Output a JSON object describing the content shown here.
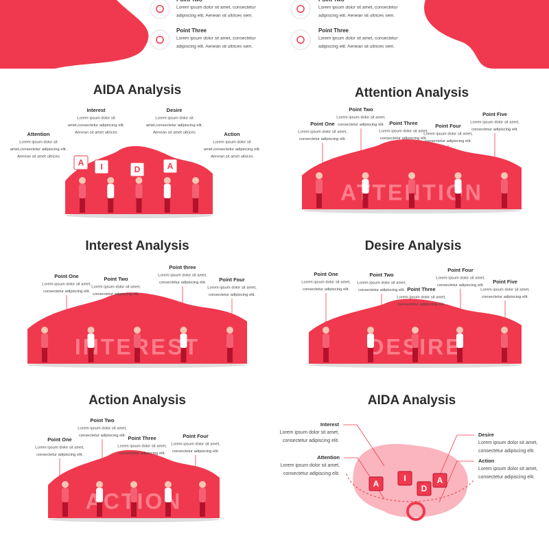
{
  "top_slides": [
    {
      "points": [
        {
          "label": "Point Two",
          "text": [
            "Lorem ipsum dolor sit amet, consectetur",
            "adipiscing elit. Aenean sit ultrices sem."
          ]
        },
        {
          "label": "Point Three",
          "text": [
            "Lorem ipsum dolor sit amet, consectetur",
            "adipiscing elit. Aenean sit ultrices sem."
          ]
        }
      ]
    },
    {
      "points": [
        {
          "label": "Point Two",
          "text": [
            "Lorem ipsum dolor sit amet, consectetur",
            "adipiscing elit. Aenean sit ultrices sem."
          ]
        },
        {
          "label": "Point Three",
          "text": [
            "Lorem ipsum dolor sit amet, consectetur",
            "adipiscing elit. Aenean sit ultrices sem."
          ]
        }
      ]
    }
  ],
  "slides": [
    {
      "title": "AIDA Analysis",
      "letters": [
        "A",
        "I",
        "D",
        "A"
      ],
      "points": [
        {
          "label": "Interest",
          "text": [
            "Lorem ipsum dolor sit",
            "amet,consectetur adipiscing elit.",
            "Aenean sit amet ultrices"
          ]
        },
        {
          "label": "Desire",
          "text": [
            "Lorem ipsum dolor sit",
            "amet,consectetur adipiscing elit.",
            "Aenean sit amet ultrices"
          ]
        },
        {
          "label": "Attention",
          "text": [
            "Lorem ipsum dolor sit",
            "amet,consectetur adipiscing elit.",
            "Aenean sit amet ultrices"
          ]
        },
        {
          "label": "Action",
          "text": [
            "Lorem ipsum dolor sit",
            "amet,consectetur adipiscing elit.",
            "Aenean sit amet ultrices"
          ]
        }
      ]
    },
    {
      "title": "Attention Analysis",
      "word": "ATTENTION",
      "points": [
        {
          "label": "Point One",
          "text": [
            "Lorem ipsum dolor sit amet,",
            "consectetur adipiscing elit."
          ]
        },
        {
          "label": "Point Two",
          "text": [
            "Lorem ipsum dolor sit amet,",
            "consectetur adipiscing elit."
          ]
        },
        {
          "label": "Point Three",
          "text": [
            "Lorem ipsum dolor sit amet,",
            "consectetur adipiscing elit."
          ]
        },
        {
          "label": "Point Four",
          "text": [
            "Lorem ipsum dolor sit amet,",
            "consectetur adipiscing elit."
          ]
        },
        {
          "label": "Point Five",
          "text": [
            "Lorem ipsum dolor sit amet,",
            "consectetur adipiscing elit."
          ]
        }
      ]
    },
    {
      "title": "Interest Analysis",
      "word": "INTEREST",
      "points": [
        {
          "label": "Point One",
          "text": [
            "Lorem ipsum dolor sit amet,",
            "consectetur adipiscing elit."
          ]
        },
        {
          "label": "Point Two",
          "text": [
            "Lorem ipsum dolor sit amet,",
            "consectetur adipiscing elit."
          ]
        },
        {
          "label": "Point three",
          "text": [
            "Lorem ipsum dolor sit amet,",
            "consectetur adipiscing elit."
          ]
        },
        {
          "label": "Point Four",
          "text": [
            "Lorem ipsum dolor sit amet,",
            "consectetur adipiscing elit."
          ]
        }
      ]
    },
    {
      "title": "Desire Analysis",
      "word": "DESIRE",
      "points": [
        {
          "label": "Point One",
          "text": [
            "Lorem ipsum dolor sit amet,",
            "consectetur adipiscing elit."
          ]
        },
        {
          "label": "Point Two",
          "text": [
            "Lorem ipsum dolor sit amet,",
            "consectetur adipiscing elit."
          ]
        },
        {
          "label": "Point Three",
          "text": [
            "Lorem ipsum dolor sit amet,",
            "consectetur adipiscing elit."
          ]
        },
        {
          "label": "Point Four",
          "text": [
            "Lorem ipsum dolor sit amet,",
            "consectetur adipiscing elit."
          ]
        },
        {
          "label": "Point Five",
          "text": [
            "Lorem ipsum dolor sit amet,",
            "consectetur adipiscing elit."
          ]
        }
      ]
    },
    {
      "title": "Action Analysis",
      "word": "ACTION",
      "points": [
        {
          "label": "Point One",
          "text": [
            "Lorem ipsum dolor sit amet,",
            "consectetur adipiscing elit."
          ]
        },
        {
          "label": "Point Two",
          "text": [
            "Lorem ipsum dolor sit amet,",
            "consectetur adipiscing elit."
          ]
        },
        {
          "label": "Point Three",
          "text": [
            "Lorem ipsum dolor sit amet,",
            "consectetur adipiscing elit."
          ]
        },
        {
          "label": "Point Four",
          "text": [
            "Lorem ipsum dolor sit amet,",
            "consectetur adipiscing elit."
          ]
        }
      ]
    },
    {
      "title": "AIDA Analysis",
      "letters": [
        "A",
        "I",
        "D",
        "A"
      ],
      "points": [
        {
          "label": "Interest",
          "text": [
            "Lorem ipsum dolor sit amet,",
            "consectetur adipiscing elit."
          ]
        },
        {
          "label": "Attention",
          "text": [
            "Lorem ipsum dolor sit amet,",
            "consectetur adipiscing elit."
          ]
        },
        {
          "label": "Desire",
          "text": [
            "Lorem ipsum dolor sit amet,",
            "consectetur adipiscing elit."
          ]
        },
        {
          "label": "Action",
          "text": [
            "Lorem ipsum dolor sit amet,",
            "consectetur adipiscing elit."
          ]
        }
      ]
    }
  ]
}
